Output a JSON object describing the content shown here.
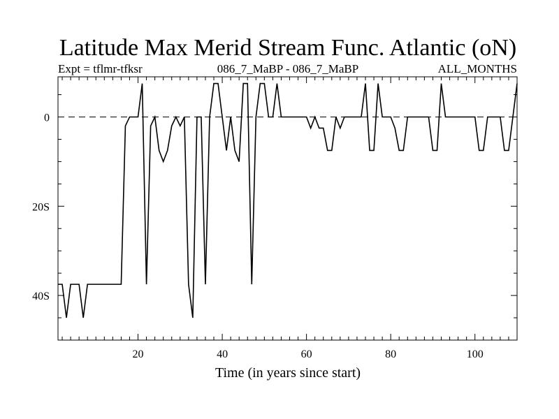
{
  "chart_data": {
    "type": "line",
    "title": "Latitude Max Merid Stream Func. Atlantic (oN)",
    "subtitle_left": "Expt = tflmr-tfksr",
    "subtitle_center": "086_7_MaBP - 086_7_MaBP",
    "subtitle_right": "ALL_MONTHS",
    "xlabel": "Time (in years since start)",
    "ylabel": "",
    "xlim": [
      1,
      110
    ],
    "ylim": [
      -50,
      9
    ],
    "x_ticks": [
      20,
      40,
      60,
      80,
      100
    ],
    "y_ticks": [
      {
        "value": 0,
        "label": "0"
      },
      {
        "value": -20,
        "label": "20S"
      },
      {
        "value": -40,
        "label": "40S"
      }
    ],
    "reference_line": {
      "value": 0,
      "style": "dashed"
    },
    "series": [
      {
        "name": "latitude",
        "x": [
          1,
          2,
          3,
          4,
          5,
          6,
          7,
          8,
          9,
          10,
          11,
          12,
          13,
          14,
          15,
          16,
          17,
          18,
          19,
          20,
          21,
          22,
          23,
          24,
          25,
          26,
          27,
          28,
          29,
          30,
          31,
          32,
          33,
          34,
          35,
          36,
          37,
          38,
          39,
          40,
          41,
          42,
          43,
          44,
          45,
          46,
          47,
          48,
          49,
          50,
          51,
          52,
          53,
          54,
          55,
          56,
          57,
          58,
          59,
          60,
          61,
          62,
          63,
          64,
          65,
          66,
          67,
          68,
          69,
          70,
          71,
          72,
          73,
          74,
          75,
          76,
          77,
          78,
          79,
          80,
          81,
          82,
          83,
          84,
          85,
          86,
          87,
          88,
          89,
          90,
          91,
          92,
          93,
          94,
          95,
          96,
          97,
          98,
          99,
          100,
          101,
          102,
          103,
          104,
          105,
          106,
          107,
          108,
          109,
          110
        ],
        "y": [
          -37.5,
          -37.5,
          -45,
          -37.5,
          -37.5,
          -37.5,
          -45,
          -37.5,
          -37.5,
          -37.5,
          -37.5,
          -37.5,
          -37.5,
          -37.5,
          -37.5,
          -37.5,
          -2,
          0,
          0,
          0,
          7.5,
          -37.5,
          -2,
          0,
          -7.5,
          -10,
          -7.5,
          -2,
          0,
          -2,
          0,
          -37.5,
          -45,
          0,
          0,
          -37.5,
          0,
          7.5,
          7.5,
          0,
          -7.5,
          0,
          -7.5,
          -10,
          7.5,
          7.5,
          -37.5,
          0,
          7.5,
          7.5,
          0,
          0,
          7.5,
          0,
          0,
          0,
          0,
          0,
          0,
          0,
          -2.5,
          0,
          -2.5,
          -2.5,
          -7.5,
          -7.5,
          0,
          -2.5,
          0,
          0,
          0,
          0,
          0,
          7.5,
          -7.5,
          -7.5,
          7.5,
          0,
          0,
          0,
          -2.5,
          -7.5,
          -7.5,
          0,
          0,
          0,
          0,
          0,
          0,
          -7.5,
          -7.5,
          7.5,
          0,
          0,
          0,
          0,
          0,
          0,
          0,
          0,
          -7.5,
          -7.5,
          0,
          0,
          0,
          0,
          -7.5,
          -7.5,
          0,
          7.5
        ]
      }
    ]
  }
}
